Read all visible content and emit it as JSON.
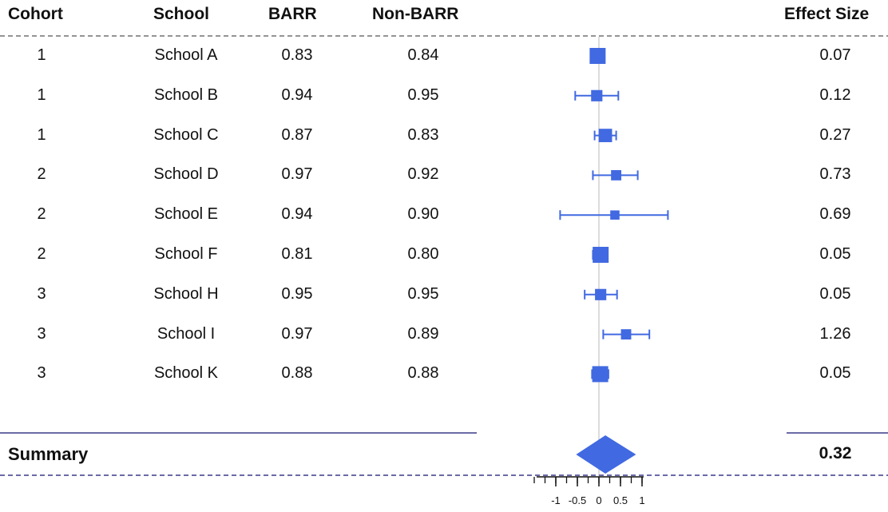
{
  "chart_data": {
    "type": "forest",
    "columns": {
      "cohort": "Cohort",
      "school": "School",
      "barr": "BARR",
      "non_barr": "Non-BARR",
      "effect_size": "Effect Size"
    },
    "rows": [
      {
        "cohort": "1",
        "school": "School A",
        "barr": "0.83",
        "non_barr": "0.84",
        "effect_size": "0.07",
        "estimate": -0.03,
        "ci_low": -0.17,
        "ci_high": 0.1,
        "weight": 1.0
      },
      {
        "cohort": "1",
        "school": "School B",
        "barr": "0.94",
        "non_barr": "0.95",
        "effect_size": "0.12",
        "estimate": -0.05,
        "ci_low": -0.55,
        "ci_high": 0.45,
        "weight": 0.55
      },
      {
        "cohort": "1",
        "school": "School C",
        "barr": "0.87",
        "non_barr": "0.83",
        "effect_size": "0.27",
        "estimate": 0.15,
        "ci_low": -0.1,
        "ci_high": 0.4,
        "weight": 0.75
      },
      {
        "cohort": "2",
        "school": "School D",
        "barr": "0.97",
        "non_barr": "0.92",
        "effect_size": "0.73",
        "estimate": 0.4,
        "ci_low": -0.14,
        "ci_high": 0.9,
        "weight": 0.45
      },
      {
        "cohort": "2",
        "school": "School E",
        "barr": "0.94",
        "non_barr": "0.90",
        "effect_size": "0.69",
        "estimate": 0.37,
        "ci_low": -0.9,
        "ci_high": 1.6,
        "weight": 0.35
      },
      {
        "cohort": "2",
        "school": "School F",
        "barr": "0.81",
        "non_barr": "0.80",
        "effect_size": "0.05",
        "estimate": 0.04,
        "ci_low": -0.14,
        "ci_high": 0.2,
        "weight": 1.0
      },
      {
        "cohort": "3",
        "school": "School H",
        "barr": "0.95",
        "non_barr": "0.95",
        "effect_size": "0.05",
        "estimate": 0.04,
        "ci_low": -0.33,
        "ci_high": 0.42,
        "weight": 0.55
      },
      {
        "cohort": "3",
        "school": "School I",
        "barr": "0.97",
        "non_barr": "0.89",
        "effect_size": "1.26",
        "estimate": 0.63,
        "ci_low": 0.1,
        "ci_high": 1.17,
        "weight": 0.45
      },
      {
        "cohort": "3",
        "school": "School K",
        "barr": "0.88",
        "non_barr": "0.88",
        "effect_size": "0.05",
        "estimate": 0.03,
        "ci_low": -0.16,
        "ci_high": 0.22,
        "weight": 1.0
      }
    ],
    "summary": {
      "label": "Summary",
      "effect_size": "0.32",
      "estimate": 0.15,
      "ci_low": -0.27,
      "ci_high": 0.6
    },
    "x_ticks": [
      "-1",
      "-0.5",
      "0",
      "0.5",
      "1"
    ],
    "x_tick_values": [
      -1,
      -0.5,
      0,
      0.5,
      1
    ],
    "xlim": [
      -1.5,
      1.6
    ],
    "reference_line": 0,
    "colors": {
      "marker": "#4169e1",
      "rule": "#3a3a8a",
      "reference": "#d0d0d0"
    }
  }
}
